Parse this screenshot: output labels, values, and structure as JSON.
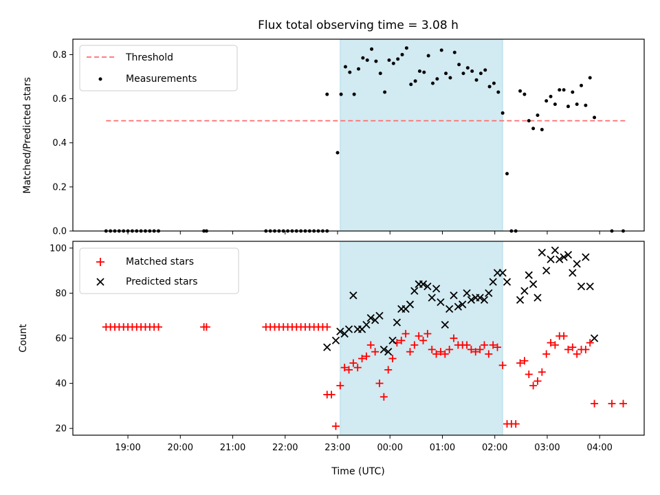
{
  "chart_data": [
    {
      "type": "scatter",
      "title": "Flux total observing time = 3.08 h",
      "xlabel": "",
      "ylabel": "Matched/Predicted stars",
      "ylim": [
        0,
        0.87
      ],
      "yticks": [
        0.0,
        0.2,
        0.4,
        0.6,
        0.8
      ],
      "ytick_labels": [
        "0.0",
        "0.2",
        "0.4",
        "0.6",
        "0.8"
      ],
      "xlim_hours": [
        17.95,
        28.85
      ],
      "grid": false,
      "legend_position": "top-left",
      "highlight_span": {
        "start": "23:03",
        "end": "02:09",
        "color": "#add8e6"
      },
      "threshold": {
        "name": "Threshold",
        "value": 0.5,
        "x_start": "18:35",
        "x_end": "04:30",
        "color": "#ff6b6b",
        "style": "dashed"
      },
      "series": [
        {
          "name": "Measurements",
          "color": "#000000",
          "marker": "dot",
          "points": [
            [
              "18:35",
              0
            ],
            [
              "18:40",
              0
            ],
            [
              "18:45",
              0
            ],
            [
              "18:50",
              0
            ],
            [
              "18:55",
              0
            ],
            [
              "19:00",
              0
            ],
            [
              "19:05",
              0
            ],
            [
              "19:10",
              0
            ],
            [
              "19:15",
              0
            ],
            [
              "19:20",
              0
            ],
            [
              "19:25",
              0
            ],
            [
              "19:30",
              0
            ],
            [
              "19:35",
              0
            ],
            [
              "20:27",
              0
            ],
            [
              "20:30",
              0
            ],
            [
              "21:38",
              0
            ],
            [
              "21:43",
              0
            ],
            [
              "21:48",
              0
            ],
            [
              "21:53",
              0
            ],
            [
              "21:58",
              0
            ],
            [
              "22:03",
              0
            ],
            [
              "22:08",
              0
            ],
            [
              "22:13",
              0
            ],
            [
              "22:18",
              0
            ],
            [
              "22:23",
              0
            ],
            [
              "22:28",
              0
            ],
            [
              "22:33",
              0
            ],
            [
              "22:38",
              0
            ],
            [
              "22:43",
              0
            ],
            [
              "22:48",
              0
            ],
            [
              "22:48",
              0.62
            ],
            [
              "23:00",
              0.355
            ],
            [
              "23:04",
              0.62
            ],
            [
              "23:09",
              0.745
            ],
            [
              "23:14",
              0.72
            ],
            [
              "23:19",
              0.62
            ],
            [
              "23:24",
              0.735
            ],
            [
              "23:29",
              0.785
            ],
            [
              "23:34",
              0.775
            ],
            [
              "23:39",
              0.825
            ],
            [
              "23:44",
              0.77
            ],
            [
              "23:49",
              0.715
            ],
            [
              "23:54",
              0.63
            ],
            [
              "23:59",
              0.775
            ],
            [
              "00:04",
              0.76
            ],
            [
              "00:09",
              0.78
            ],
            [
              "00:14",
              0.8
            ],
            [
              "00:19",
              0.83
            ],
            [
              "00:24",
              0.665
            ],
            [
              "00:29",
              0.68
            ],
            [
              "00:34",
              0.725
            ],
            [
              "00:39",
              0.72
            ],
            [
              "00:44",
              0.795
            ],
            [
              "00:49",
              0.67
            ],
            [
              "00:54",
              0.69
            ],
            [
              "00:59",
              0.82
            ],
            [
              "01:04",
              0.715
            ],
            [
              "01:09",
              0.695
            ],
            [
              "01:14",
              0.81
            ],
            [
              "01:19",
              0.755
            ],
            [
              "01:24",
              0.715
            ],
            [
              "01:29",
              0.74
            ],
            [
              "01:34",
              0.725
            ],
            [
              "01:39",
              0.685
            ],
            [
              "01:44",
              0.715
            ],
            [
              "01:49",
              0.73
            ],
            [
              "01:54",
              0.655
            ],
            [
              "01:59",
              0.67
            ],
            [
              "02:04",
              0.63
            ],
            [
              "02:09",
              0.535
            ],
            [
              "02:14",
              0.26
            ],
            [
              "02:19",
              0
            ],
            [
              "02:24",
              0
            ],
            [
              "02:29",
              0.635
            ],
            [
              "02:34",
              0.62
            ],
            [
              "02:39",
              0.5
            ],
            [
              "02:44",
              0.465
            ],
            [
              "02:49",
              0.525
            ],
            [
              "02:54",
              0.46
            ],
            [
              "02:59",
              0.59
            ],
            [
              "03:04",
              0.61
            ],
            [
              "03:09",
              0.575
            ],
            [
              "03:14",
              0.64
            ],
            [
              "03:19",
              0.64
            ],
            [
              "03:24",
              0.565
            ],
            [
              "03:29",
              0.63
            ],
            [
              "03:34",
              0.575
            ],
            [
              "03:39",
              0.66
            ],
            [
              "03:44",
              0.57
            ],
            [
              "03:49",
              0.695
            ],
            [
              "03:54",
              0.515
            ],
            [
              "04:14",
              0
            ],
            [
              "04:27",
              0
            ]
          ]
        }
      ]
    },
    {
      "type": "scatter",
      "title": "",
      "xlabel": "Time (UTC)",
      "ylabel": "Count",
      "ylim": [
        17,
        103
      ],
      "yticks": [
        20,
        40,
        60,
        80,
        100
      ],
      "ytick_labels": [
        "20",
        "40",
        "60",
        "80",
        "100"
      ],
      "xticks": [
        "19:00",
        "20:00",
        "21:00",
        "22:00",
        "23:00",
        "00:00",
        "01:00",
        "02:00",
        "03:00",
        "04:00"
      ],
      "xlim_hours": [
        17.95,
        28.85
      ],
      "grid": false,
      "legend_position": "top-left",
      "highlight_span": {
        "start": "23:03",
        "end": "02:09",
        "color": "#add8e6"
      },
      "series": [
        {
          "name": "Matched stars",
          "color": "#ff0000",
          "marker": "plus",
          "points": [
            [
              "18:35",
              65
            ],
            [
              "18:40",
              65
            ],
            [
              "18:45",
              65
            ],
            [
              "18:50",
              65
            ],
            [
              "18:55",
              65
            ],
            [
              "19:00",
              65
            ],
            [
              "19:05",
              65
            ],
            [
              "19:10",
              65
            ],
            [
              "19:15",
              65
            ],
            [
              "19:20",
              65
            ],
            [
              "19:25",
              65
            ],
            [
              "19:30",
              65
            ],
            [
              "19:35",
              65
            ],
            [
              "20:27",
              65
            ],
            [
              "20:30",
              65
            ],
            [
              "21:38",
              65
            ],
            [
              "21:43",
              65
            ],
            [
              "21:48",
              65
            ],
            [
              "21:53",
              65
            ],
            [
              "21:58",
              65
            ],
            [
              "22:03",
              65
            ],
            [
              "22:08",
              65
            ],
            [
              "22:13",
              65
            ],
            [
              "22:18",
              65
            ],
            [
              "22:23",
              65
            ],
            [
              "22:28",
              65
            ],
            [
              "22:33",
              65
            ],
            [
              "22:38",
              65
            ],
            [
              "22:43",
              65
            ],
            [
              "22:48",
              65
            ],
            [
              "22:48",
              35
            ],
            [
              "22:53",
              35
            ],
            [
              "22:58",
              21
            ],
            [
              "23:03",
              39
            ],
            [
              "23:08",
              47
            ],
            [
              "23:13",
              46
            ],
            [
              "23:18",
              49
            ],
            [
              "23:23",
              47
            ],
            [
              "23:28",
              51
            ],
            [
              "23:33",
              52
            ],
            [
              "23:38",
              57
            ],
            [
              "23:43",
              54
            ],
            [
              "23:48",
              40
            ],
            [
              "23:53",
              34
            ],
            [
              "23:58",
              46
            ],
            [
              "00:03",
              51
            ],
            [
              "00:08",
              58
            ],
            [
              "00:13",
              59
            ],
            [
              "00:18",
              62
            ],
            [
              "00:23",
              54
            ],
            [
              "00:28",
              57
            ],
            [
              "00:33",
              61
            ],
            [
              "00:38",
              59
            ],
            [
              "00:43",
              62
            ],
            [
              "00:48",
              55
            ],
            [
              "00:53",
              53
            ],
            [
              "00:58",
              54
            ],
            [
              "01:03",
              53
            ],
            [
              "01:08",
              55
            ],
            [
              "01:13",
              60
            ],
            [
              "01:18",
              57
            ],
            [
              "01:23",
              57
            ],
            [
              "01:28",
              57
            ],
            [
              "01:33",
              55
            ],
            [
              "01:38",
              54
            ],
            [
              "01:43",
              55
            ],
            [
              "01:48",
              57
            ],
            [
              "01:53",
              53
            ],
            [
              "01:58",
              57
            ],
            [
              "02:03",
              56
            ],
            [
              "02:09",
              48
            ],
            [
              "02:14",
              22
            ],
            [
              "02:19",
              22
            ],
            [
              "02:24",
              22
            ],
            [
              "02:29",
              49
            ],
            [
              "02:34",
              50
            ],
            [
              "02:39",
              44
            ],
            [
              "02:44",
              39
            ],
            [
              "02:49",
              41
            ],
            [
              "02:54",
              45
            ],
            [
              "02:59",
              53
            ],
            [
              "03:04",
              58
            ],
            [
              "03:09",
              57
            ],
            [
              "03:14",
              61
            ],
            [
              "03:19",
              61
            ],
            [
              "03:24",
              55
            ],
            [
              "03:29",
              56
            ],
            [
              "03:34",
              53
            ],
            [
              "03:39",
              55
            ],
            [
              "03:44",
              55
            ],
            [
              "03:49",
              58
            ],
            [
              "03:54",
              31
            ],
            [
              "04:14",
              31
            ],
            [
              "04:27",
              31
            ]
          ]
        },
        {
          "name": "Predicted stars",
          "color": "#000000",
          "marker": "x",
          "points": [
            [
              "22:48",
              56
            ],
            [
              "22:58",
              59
            ],
            [
              "23:03",
              63
            ],
            [
              "23:08",
              62
            ],
            [
              "23:13",
              64
            ],
            [
              "23:18",
              79
            ],
            [
              "23:23",
              64
            ],
            [
              "23:28",
              64
            ],
            [
              "23:33",
              66
            ],
            [
              "23:38",
              69
            ],
            [
              "23:43",
              68
            ],
            [
              "23:48",
              70
            ],
            [
              "23:53",
              55
            ],
            [
              "23:58",
              54
            ],
            [
              "00:03",
              59
            ],
            [
              "00:08",
              67
            ],
            [
              "00:13",
              73
            ],
            [
              "00:18",
              73
            ],
            [
              "00:23",
              75
            ],
            [
              "00:28",
              81
            ],
            [
              "00:33",
              84
            ],
            [
              "00:38",
              84
            ],
            [
              "00:43",
              83
            ],
            [
              "00:48",
              78
            ],
            [
              "00:53",
              82
            ],
            [
              "00:58",
              76
            ],
            [
              "01:03",
              66
            ],
            [
              "01:08",
              73
            ],
            [
              "01:13",
              79
            ],
            [
              "01:18",
              74
            ],
            [
              "01:23",
              75
            ],
            [
              "01:28",
              80
            ],
            [
              "01:33",
              77
            ],
            [
              "01:38",
              78
            ],
            [
              "01:43",
              78
            ],
            [
              "01:48",
              77
            ],
            [
              "01:53",
              80
            ],
            [
              "01:58",
              85
            ],
            [
              "02:03",
              89
            ],
            [
              "02:09",
              89
            ],
            [
              "02:14",
              85
            ],
            [
              "02:29",
              77
            ],
            [
              "02:34",
              81
            ],
            [
              "02:39",
              88
            ],
            [
              "02:44",
              84
            ],
            [
              "02:49",
              78
            ],
            [
              "02:54",
              98
            ],
            [
              "02:59",
              90
            ],
            [
              "03:04",
              95
            ],
            [
              "03:09",
              99
            ],
            [
              "03:14",
              95
            ],
            [
              "03:19",
              96
            ],
            [
              "03:24",
              97
            ],
            [
              "03:29",
              89
            ],
            [
              "03:34",
              93
            ],
            [
              "03:39",
              83
            ],
            [
              "03:44",
              96
            ],
            [
              "03:49",
              83
            ],
            [
              "03:54",
              60
            ]
          ]
        }
      ]
    }
  ]
}
